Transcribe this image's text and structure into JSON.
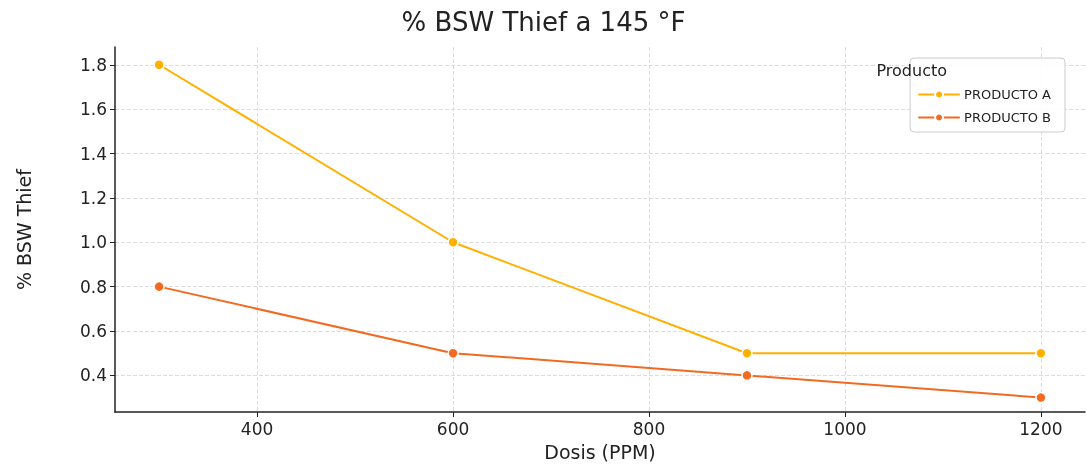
{
  "chart_data": {
    "type": "line",
    "title": "% BSW Thief a 145 °F",
    "xlabel": "Dosis (PPM)",
    "ylabel": "% BSW Thief",
    "legend_title": "Producto",
    "x": [
      300,
      600,
      900,
      1200
    ],
    "series": [
      {
        "name": "PRODUCTO A",
        "color": "#ffb000",
        "values": [
          1.8,
          1.0,
          0.5,
          0.5
        ]
      },
      {
        "name": "PRODUCTO B",
        "color": "#f26a21",
        "values": [
          0.8,
          0.5,
          0.4,
          0.3
        ]
      }
    ],
    "xlim": [
      255,
      1245
    ],
    "xticks": [
      400,
      600,
      800,
      1000,
      1200
    ],
    "ylim": [
      0.235,
      1.88
    ],
    "yticks": [
      0.4,
      0.6,
      0.8,
      {
        "value": 1,
        "label": "1.0"
      },
      1.2,
      1.4,
      1.6,
      1.8
    ],
    "grid": true,
    "legend": "top right",
    "marker": "circle",
    "line_style": "solid"
  }
}
